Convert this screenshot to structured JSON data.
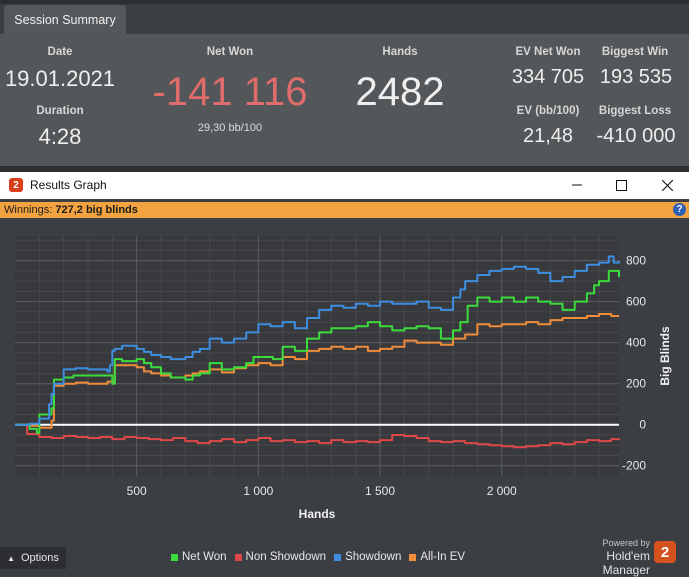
{
  "summary": {
    "tab": "Session Summary",
    "date": {
      "label": "Date",
      "value": "19.01.2021"
    },
    "duration": {
      "label": "Duration",
      "value": "4:28"
    },
    "net_won": {
      "label": "Net Won",
      "value": "-141 116",
      "sub": "29,30 bb/100",
      "color": "#e06c6c"
    },
    "hands": {
      "label": "Hands",
      "value": "2482"
    },
    "ev_net_won": {
      "label": "EV Net Won",
      "value": "334 705"
    },
    "biggest_win": {
      "label": "Biggest Win",
      "value": "193 535"
    },
    "ev_bb100": {
      "label": "EV (bb/100)",
      "value": "21,48"
    },
    "biggest_loss": {
      "label": "Biggest Loss",
      "value": "-410 000"
    }
  },
  "graph_window": {
    "title": "Results Graph",
    "icon_text": "2",
    "winnings_label": "Winnings:",
    "winnings_value": "727,2 big blinds",
    "help_text": "?",
    "options_label": "Options",
    "powered_by": "Powered by",
    "brand": "Hold'em Manager",
    "brand_logo_text": "2"
  },
  "chart_data": {
    "type": "line",
    "xlabel": "Hands",
    "ylabel": "Big Blinds",
    "xlim": [
      0,
      2482
    ],
    "ylim": [
      -250,
      920
    ],
    "x_ticks": [
      500,
      1000,
      1500,
      2000
    ],
    "x_tick_labels": [
      "500",
      "1 000",
      "1 500",
      "2 000"
    ],
    "y_ticks": [
      -200,
      0,
      200,
      400,
      600,
      800
    ],
    "y_tick_labels": [
      "-200",
      "0",
      "200",
      "400",
      "600",
      "800"
    ],
    "grid": true,
    "legend_position": "bottom",
    "series": [
      {
        "name": "Net Won",
        "color": "#3ddc3d",
        "x": [
          0,
          60,
          90,
          100,
          150,
          160,
          200,
          240,
          300,
          380,
          400,
          410,
          440,
          500,
          530,
          560,
          600,
          640,
          700,
          730,
          760,
          800,
          850,
          900,
          950,
          980,
          1020,
          1060,
          1100,
          1150,
          1200,
          1250,
          1300,
          1350,
          1400,
          1450,
          1500,
          1550,
          1600,
          1650,
          1700,
          1750,
          1800,
          1830,
          1860,
          1900,
          1950,
          2000,
          2050,
          2100,
          2150,
          2200,
          2250,
          2300,
          2350,
          2380,
          2400,
          2440,
          2482
        ],
        "y": [
          0,
          -20,
          -40,
          50,
          80,
          220,
          230,
          240,
          240,
          240,
          200,
          320,
          310,
          320,
          300,
          280,
          250,
          230,
          220,
          240,
          250,
          300,
          270,
          280,
          300,
          330,
          330,
          320,
          380,
          360,
          420,
          450,
          470,
          470,
          480,
          500,
          480,
          460,
          470,
          480,
          470,
          420,
          460,
          500,
          580,
          620,
          600,
          620,
          600,
          620,
          600,
          590,
          560,
          600,
          640,
          680,
          700,
          750,
          720
        ]
      },
      {
        "name": "Non Showdown",
        "color": "#e04848",
        "x": [
          0,
          50,
          100,
          150,
          200,
          250,
          300,
          350,
          400,
          450,
          500,
          550,
          600,
          650,
          700,
          750,
          800,
          850,
          900,
          950,
          1000,
          1050,
          1100,
          1150,
          1200,
          1250,
          1300,
          1350,
          1400,
          1450,
          1500,
          1550,
          1600,
          1650,
          1700,
          1750,
          1800,
          1850,
          1900,
          1950,
          2000,
          2050,
          2100,
          2150,
          2200,
          2250,
          2300,
          2350,
          2400,
          2450,
          2482
        ],
        "y": [
          0,
          -45,
          -60,
          -65,
          -55,
          -60,
          -65,
          -60,
          -70,
          -60,
          -65,
          -70,
          -75,
          -65,
          -80,
          -90,
          -80,
          -70,
          -85,
          -75,
          -65,
          -80,
          -75,
          -85,
          -80,
          -90,
          -75,
          -85,
          -80,
          -85,
          -75,
          -50,
          -55,
          -65,
          -80,
          -85,
          -80,
          -90,
          -95,
          -100,
          -105,
          -110,
          -105,
          -100,
          -90,
          -95,
          -85,
          -75,
          -80,
          -70,
          -75
        ]
      },
      {
        "name": "Showdown",
        "color": "#3d8ee0",
        "x": [
          0,
          60,
          100,
          140,
          150,
          160,
          200,
          250,
          300,
          380,
          390,
          400,
          410,
          440,
          500,
          530,
          560,
          600,
          640,
          700,
          730,
          760,
          800,
          850,
          900,
          950,
          1000,
          1050,
          1100,
          1150,
          1200,
          1250,
          1300,
          1350,
          1400,
          1450,
          1500,
          1550,
          1600,
          1650,
          1700,
          1750,
          1800,
          1830,
          1850,
          1900,
          1950,
          2000,
          2050,
          2100,
          2150,
          2200,
          2250,
          2300,
          2350,
          2400,
          2440,
          2460,
          2482
        ],
        "y": [
          0,
          5,
          30,
          100,
          150,
          200,
          270,
          275,
          270,
          260,
          290,
          360,
          370,
          385,
          370,
          355,
          340,
          330,
          320,
          330,
          355,
          370,
          420,
          400,
          420,
          450,
          490,
          480,
          500,
          470,
          520,
          560,
          580,
          570,
          590,
          580,
          600,
          590,
          590,
          600,
          570,
          560,
          620,
          660,
          700,
          730,
          750,
          760,
          770,
          760,
          740,
          700,
          720,
          750,
          780,
          790,
          820,
          790,
          800
        ]
      },
      {
        "name": "All-In EV",
        "color": "#f08c3a",
        "x": [
          0,
          60,
          100,
          150,
          160,
          200,
          250,
          300,
          380,
          400,
          410,
          440,
          500,
          530,
          560,
          600,
          640,
          700,
          730,
          760,
          800,
          850,
          900,
          950,
          1000,
          1050,
          1100,
          1150,
          1200,
          1250,
          1300,
          1350,
          1400,
          1450,
          1500,
          1550,
          1600,
          1650,
          1700,
          1750,
          1800,
          1850,
          1900,
          1950,
          2000,
          2050,
          2100,
          2150,
          2200,
          2250,
          2300,
          2350,
          2400,
          2450,
          2482
        ],
        "y": [
          0,
          -5,
          -15,
          20,
          190,
          200,
          205,
          200,
          210,
          210,
          290,
          290,
          280,
          260,
          250,
          240,
          230,
          240,
          250,
          260,
          270,
          255,
          275,
          290,
          300,
          290,
          330,
          320,
          360,
          370,
          380,
          370,
          380,
          360,
          370,
          380,
          410,
          400,
          400,
          390,
          420,
          440,
          490,
          480,
          490,
          490,
          500,
          490,
          510,
          520,
          520,
          530,
          540,
          530,
          530
        ]
      }
    ]
  }
}
